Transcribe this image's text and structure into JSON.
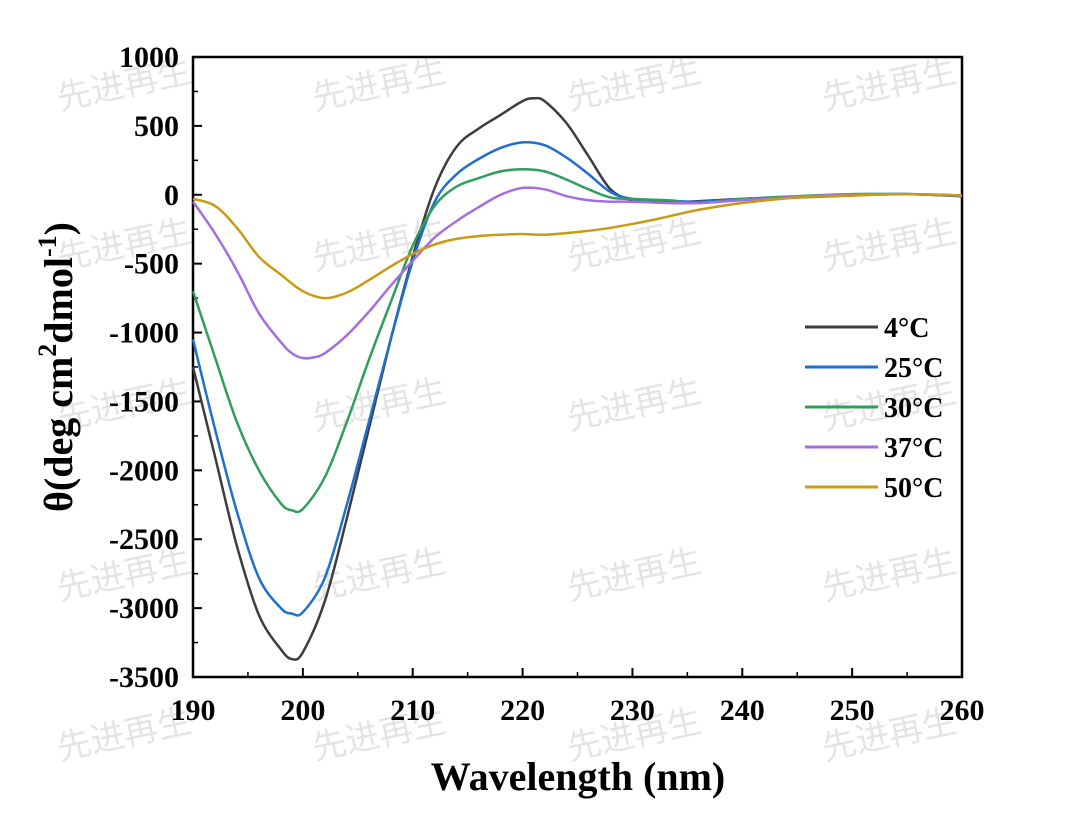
{
  "watermark": "先进再生",
  "chart_data": {
    "type": "line",
    "xlabel": "Wavelength  (nm)",
    "ylabel": {
      "main": "θ(deg cm",
      "sup1": "2",
      "mid": "dmol",
      "sup2": "-1",
      "end": ")"
    },
    "xlim": [
      190,
      260
    ],
    "ylim": [
      -3500,
      1000
    ],
    "xticks": [
      190,
      200,
      210,
      220,
      230,
      240,
      250,
      260
    ],
    "yticks": [
      1000,
      500,
      0,
      -500,
      -1000,
      -1500,
      -2000,
      -2500,
      -3000,
      -3500
    ],
    "legend_position": "right-middle",
    "series": [
      {
        "name": "4°C",
        "color": "#3d3d3d",
        "x": [
          190,
          192,
          194,
          196,
          198,
          199,
          200,
          202,
          204,
          206,
          208,
          210,
          212,
          214,
          216,
          218,
          220,
          221,
          222,
          224,
          226,
          228,
          230,
          232,
          235,
          240,
          245,
          250,
          255,
          260
        ],
        "y": [
          -1250,
          -1900,
          -2550,
          -3050,
          -3300,
          -3370,
          -3320,
          -2950,
          -2350,
          -1700,
          -1050,
          -450,
          50,
          350,
          480,
          580,
          680,
          700,
          680,
          520,
          280,
          40,
          -40,
          -50,
          -50,
          -30,
          -20,
          -5,
          5,
          -10
        ]
      },
      {
        "name": "25°C",
        "color": "#1f6fd1",
        "x": [
          190,
          192,
          194,
          196,
          198,
          199,
          200,
          202,
          204,
          206,
          208,
          210,
          212,
          214,
          216,
          218,
          220,
          222,
          224,
          226,
          228,
          230,
          233,
          236,
          240,
          245,
          250,
          255,
          260
        ],
        "y": [
          -1050,
          -1700,
          -2300,
          -2780,
          -3000,
          -3040,
          -3030,
          -2780,
          -2250,
          -1650,
          -1050,
          -480,
          -50,
          150,
          260,
          340,
          380,
          360,
          270,
          150,
          20,
          -30,
          -40,
          -50,
          -30,
          -15,
          0,
          5,
          -10
        ]
      },
      {
        "name": "30°C",
        "color": "#2f9e5c",
        "x": [
          190,
          192,
          194,
          196,
          198,
          199,
          200,
          202,
          204,
          206,
          208,
          210,
          212,
          214,
          216,
          218,
          220,
          222,
          224,
          226,
          228,
          230,
          233,
          236,
          240,
          245,
          250,
          255,
          260
        ],
        "y": [
          -700,
          -1180,
          -1650,
          -2000,
          -2240,
          -2290,
          -2280,
          -2050,
          -1650,
          -1200,
          -780,
          -370,
          -80,
          60,
          120,
          170,
          185,
          170,
          110,
          40,
          -20,
          -30,
          -40,
          -60,
          -30,
          -10,
          5,
          5,
          -5
        ]
      },
      {
        "name": "37°C",
        "color": "#a56ee0",
        "x": [
          190,
          192,
          194,
          196,
          198,
          199,
          200,
          201,
          202,
          204,
          206,
          208,
          210,
          212,
          214,
          216,
          218,
          220,
          222,
          224,
          226,
          228,
          230,
          233,
          236,
          240,
          245,
          250,
          255,
          260
        ],
        "y": [
          -50,
          -280,
          -550,
          -860,
          -1070,
          -1150,
          -1185,
          -1180,
          -1150,
          -1020,
          -850,
          -660,
          -480,
          -310,
          -190,
          -90,
          0,
          50,
          40,
          -10,
          -40,
          -50,
          -50,
          -60,
          -60,
          -40,
          -15,
          0,
          5,
          -5
        ]
      },
      {
        "name": "50°C",
        "color": "#c99a12",
        "x": [
          190,
          192,
          194,
          196,
          198,
          200,
          202,
          204,
          206,
          208,
          210,
          212,
          214,
          216,
          218,
          220,
          222,
          225,
          228,
          232,
          236,
          240,
          245,
          250,
          255,
          260
        ],
        "y": [
          -30,
          -80,
          -240,
          -450,
          -580,
          -700,
          -750,
          -710,
          -620,
          -520,
          -430,
          -360,
          -320,
          -300,
          -290,
          -285,
          -290,
          -270,
          -240,
          -180,
          -110,
          -60,
          -20,
          -5,
          5,
          -5
        ]
      }
    ]
  }
}
